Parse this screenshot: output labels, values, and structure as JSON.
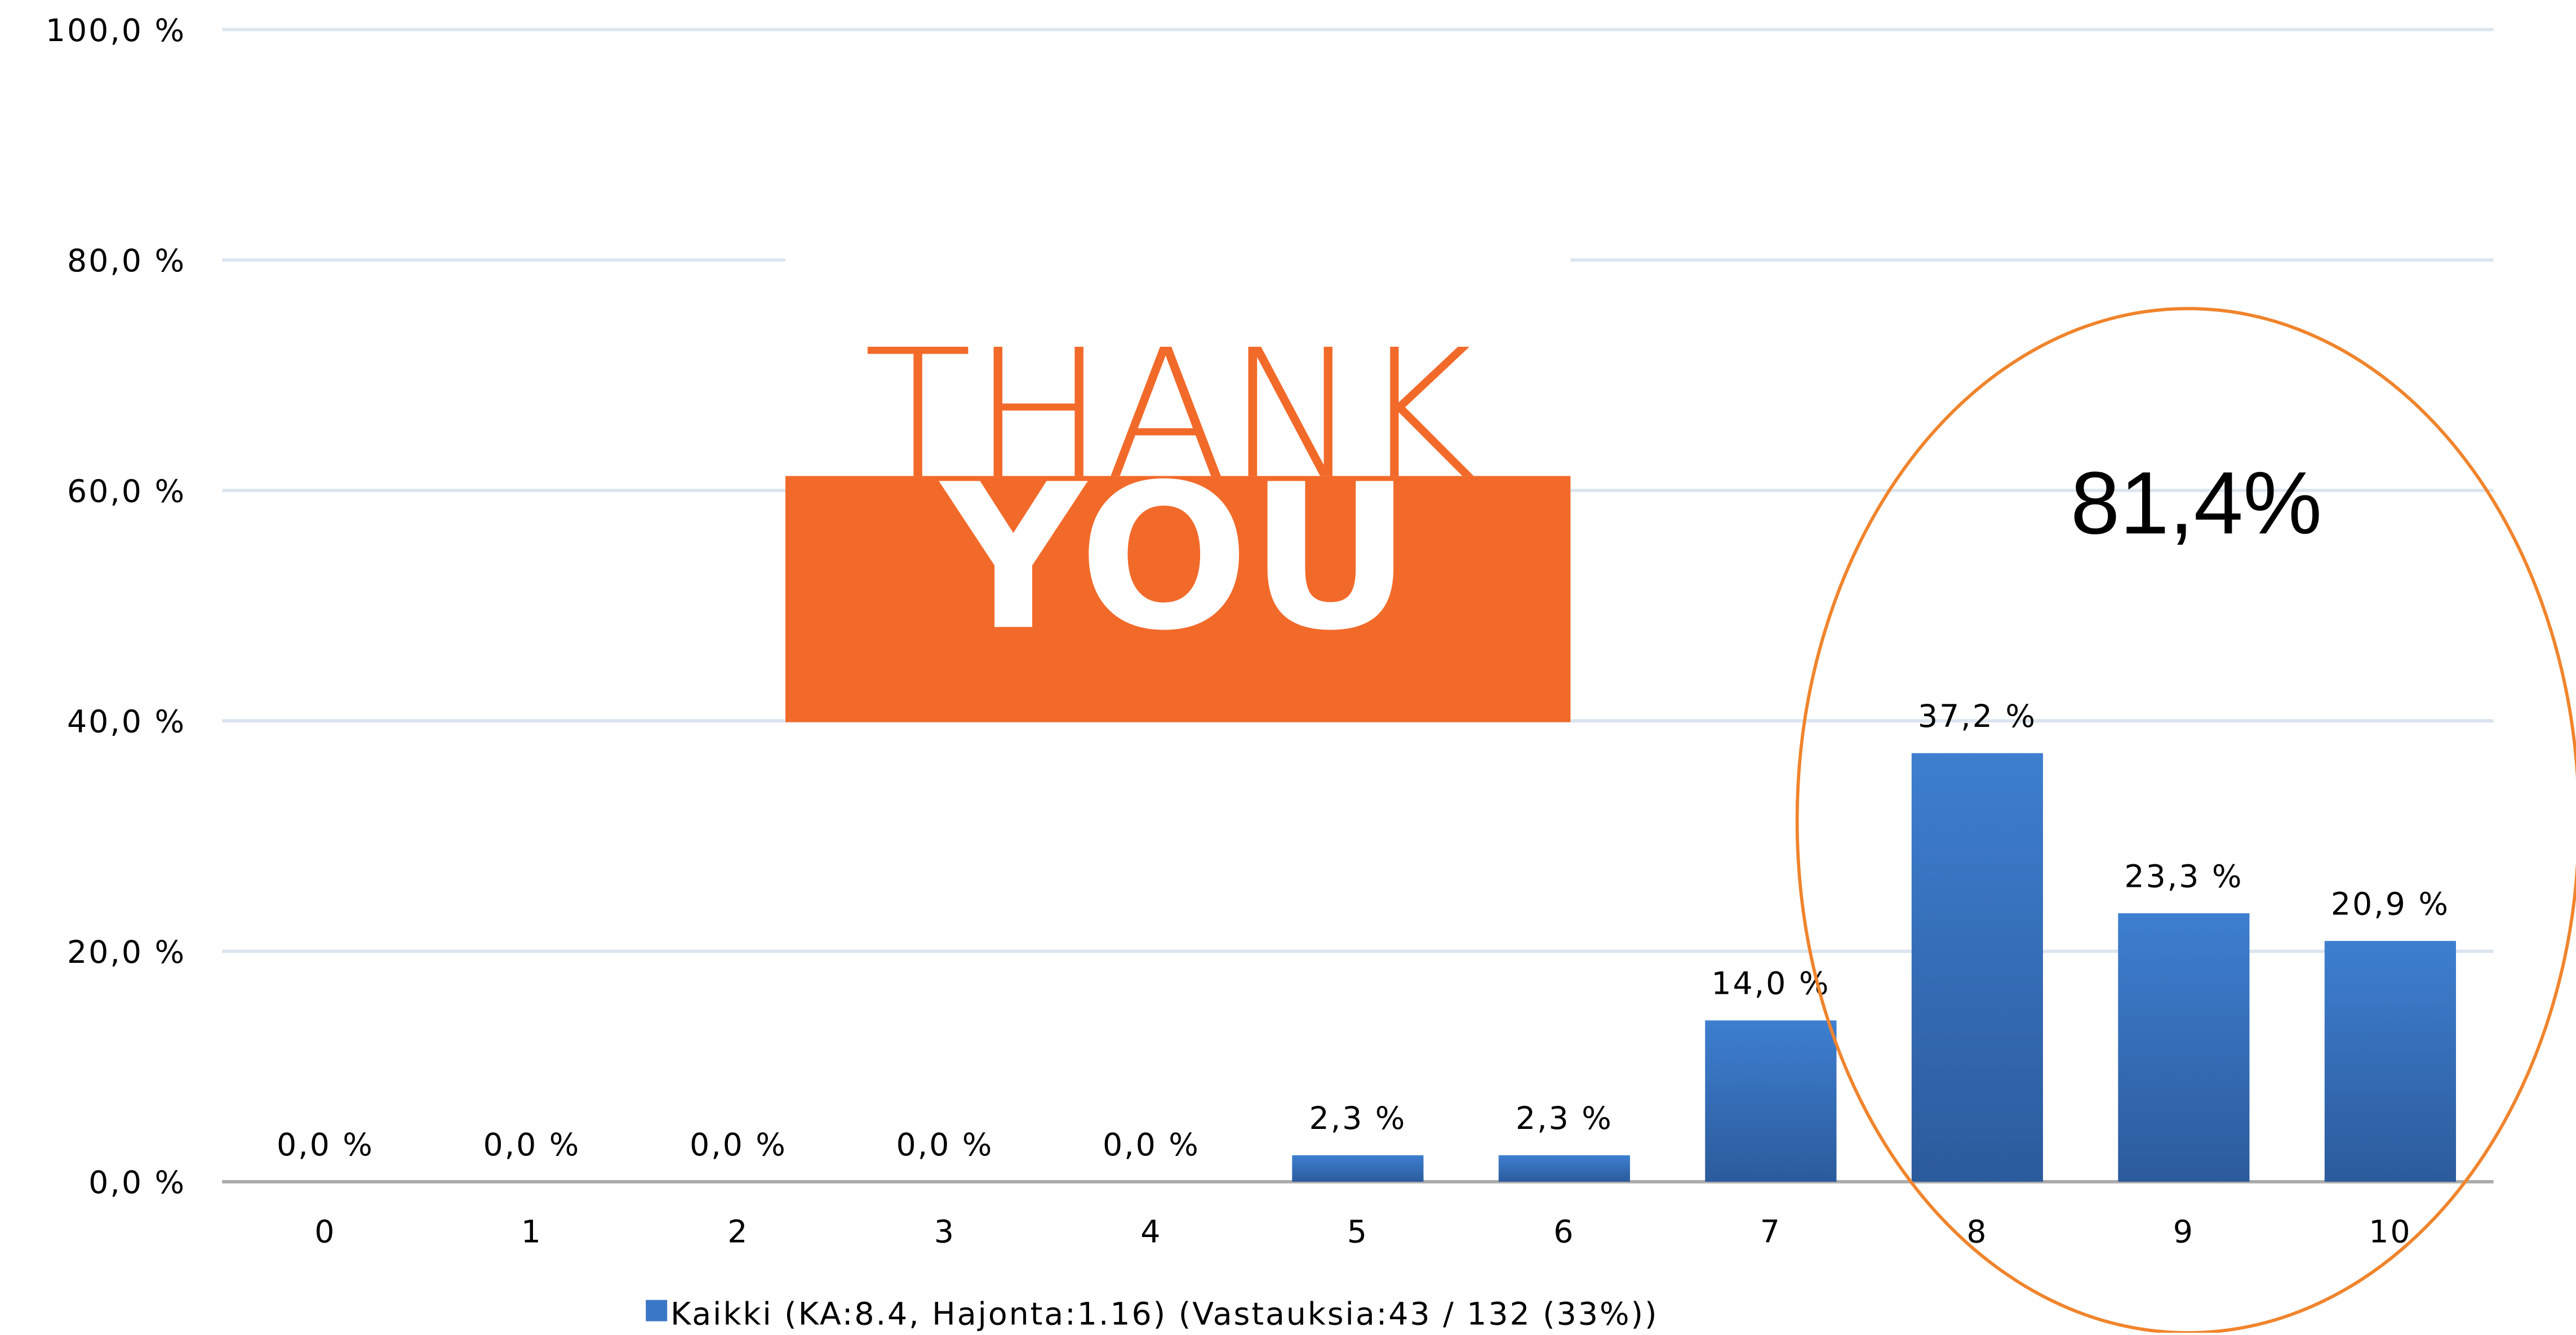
{
  "chart_data": {
    "type": "bar",
    "categories": [
      "0",
      "1",
      "2",
      "3",
      "4",
      "5",
      "6",
      "7",
      "8",
      "9",
      "10"
    ],
    "series": [
      {
        "name": "Kaikki (KA:8.4, Hajonta:1.16) (Vastauksia:43 / 132 (33%))",
        "color": "#3a78c6",
        "values": [
          0,
          0,
          0,
          0,
          0,
          2.3,
          2.3,
          14.0,
          37.2,
          23.3,
          20.9
        ],
        "value_labels": [
          "0,0 %",
          "0,0 %",
          "0,0 %",
          "0,0 %",
          "0,0 %",
          "2,3 %",
          "2,3 %",
          "14,0 %",
          "37,2 %",
          "23,3 %",
          "20,9 %"
        ]
      }
    ],
    "ylim": [
      0,
      100
    ],
    "yticks": [
      {
        "value": 0,
        "label": "0,0 %"
      },
      {
        "value": 20,
        "label": "20,0 %"
      },
      {
        "value": 40,
        "label": "40,0 %"
      },
      {
        "value": 60,
        "label": "60,0 %"
      },
      {
        "value": 80,
        "label": "80,0 %"
      },
      {
        "value": 100,
        "label": "100,0 %"
      }
    ],
    "grid": true,
    "annotations": [
      "81,4%"
    ],
    "image_text": [
      "THANK",
      "YOU"
    ]
  }
}
